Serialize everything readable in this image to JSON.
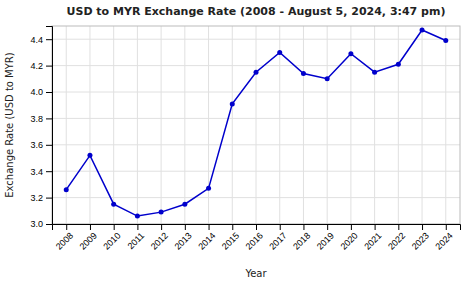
{
  "chart_data": {
    "type": "line",
    "title": "USD to MYR Exchange Rate (2008 - August 5, 2024, 3:47 pm)",
    "x_label": "Year",
    "y_label": "Exchange Rate (USD to MYR)",
    "x": [
      2008,
      2009,
      2010,
      2011,
      2012,
      2013,
      2014,
      2015,
      2016,
      2017,
      2018,
      2019,
      2020,
      2021,
      2022,
      2023,
      2024
    ],
    "values": [
      3.26,
      3.52,
      3.15,
      3.06,
      3.09,
      3.15,
      3.27,
      3.91,
      4.15,
      4.3,
      4.14,
      4.1,
      4.29,
      4.15,
      4.21,
      4.47,
      4.39
    ],
    "color": "#0000CC",
    "marker": "circle",
    "xlim": [
      2007.4,
      2024.6
    ],
    "xticks": [
      2008,
      2009,
      2010,
      2011,
      2012,
      2013,
      2014,
      2015,
      2016,
      2017,
      2018,
      2019,
      2020,
      2021,
      2022,
      2023,
      2024
    ],
    "ylim": [
      3.0,
      4.5
    ],
    "yticks": [
      {
        "value": 3.0,
        "label": "3.0"
      },
      3.2,
      3.4,
      3.6,
      3.8,
      {
        "value": 4.0,
        "label": "4.0"
      },
      4.2,
      4.4
    ],
    "grid": true
  }
}
